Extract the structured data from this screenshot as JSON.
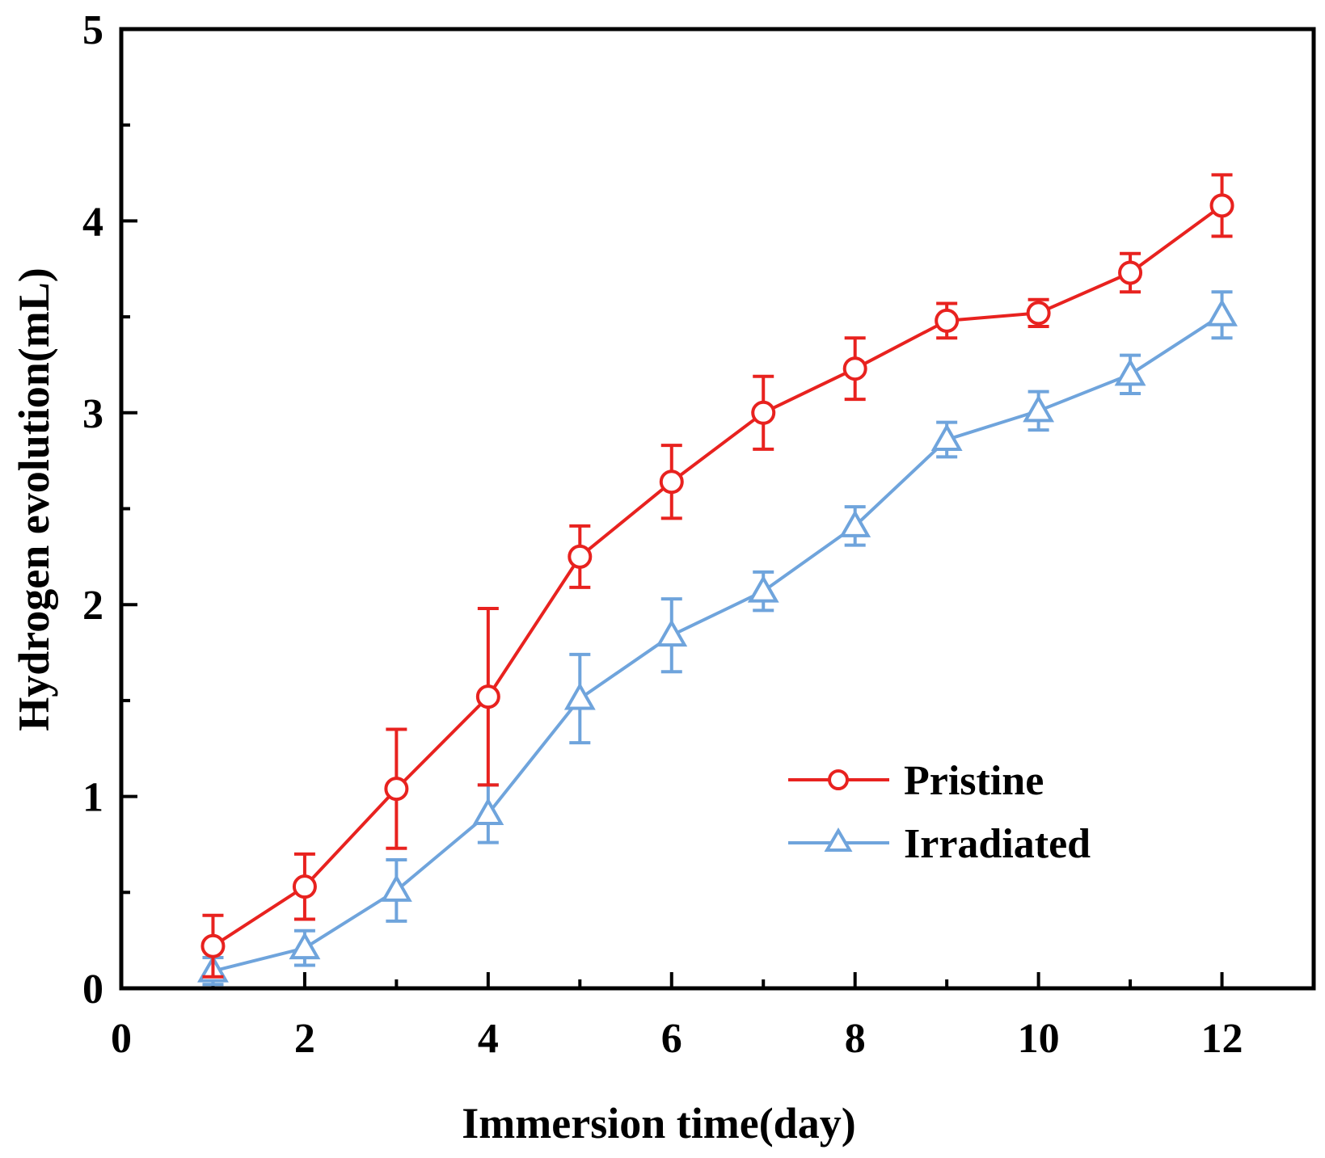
{
  "chart_data": {
    "type": "line",
    "title": "",
    "xlabel": "Immersion time(day)",
    "ylabel": "Hydrogen evolution(mL)",
    "xlim": [
      0,
      13
    ],
    "ylim": [
      0,
      5
    ],
    "x_ticks": [
      0,
      2,
      4,
      6,
      8,
      10,
      12
    ],
    "x_tick_labels": [
      "0",
      "2",
      "4",
      "6",
      "8",
      "10",
      "12"
    ],
    "y_ticks": [
      0,
      1,
      2,
      3,
      4,
      5
    ],
    "y_tick_labels": [
      "0",
      "1",
      "2",
      "3",
      "4",
      "5"
    ],
    "legend_position": "center-right",
    "grid": false,
    "x": [
      1,
      2,
      3,
      4,
      5,
      6,
      7,
      8,
      9,
      10,
      11,
      12
    ],
    "series": [
      {
        "name": "Pristine",
        "color": "#e8221f",
        "marker": "circle",
        "values": [
          0.22,
          0.53,
          1.04,
          1.52,
          2.25,
          2.64,
          3.0,
          3.23,
          3.48,
          3.52,
          3.73,
          4.08
        ],
        "errors": [
          0.16,
          0.17,
          0.31,
          0.46,
          0.16,
          0.19,
          0.19,
          0.16,
          0.09,
          0.07,
          0.1,
          0.16
        ]
      },
      {
        "name": "Irradiated",
        "color": "#6fa4dc",
        "marker": "triangle",
        "values": [
          0.09,
          0.21,
          0.51,
          0.91,
          1.51,
          1.84,
          2.07,
          2.41,
          2.86,
          3.01,
          3.2,
          3.51
        ],
        "errors": [
          0.07,
          0.09,
          0.16,
          0.15,
          0.23,
          0.19,
          0.1,
          0.1,
          0.09,
          0.1,
          0.1,
          0.12
        ]
      }
    ]
  }
}
